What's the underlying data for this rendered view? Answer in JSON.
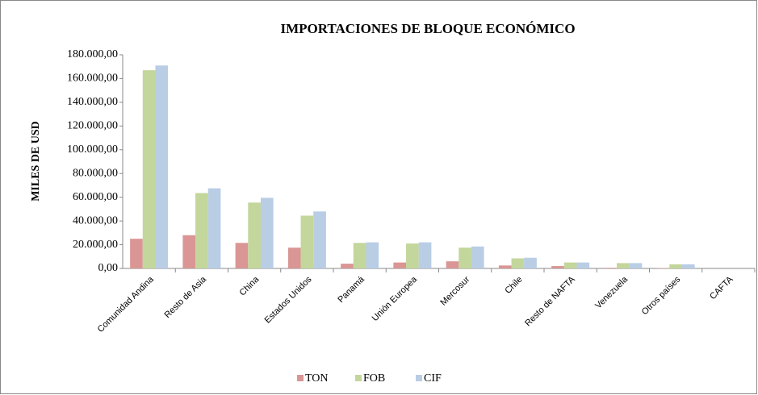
{
  "chart_data": {
    "type": "bar",
    "title": "IMPORTACIONES DE BLOQUE ECONÓMICO",
    "y_label": "MILES DE USD",
    "categories": [
      "Comunidad Andina",
      "Resto de Asia",
      "China",
      "Estados Unidos",
      "Panamá",
      "Unión Europea",
      "Mercosur",
      "Chile",
      "Resto de NAFTA",
      "Venezuela",
      "Otros países",
      "CAFTA"
    ],
    "series": [
      {
        "name": "TON",
        "color": "#d99694",
        "values": [
          25000,
          28000,
          21500,
          17500,
          4000,
          5000,
          6000,
          2500,
          2000,
          500,
          300,
          0
        ]
      },
      {
        "name": "FOB",
        "color": "#c3d69b",
        "values": [
          167000,
          63500,
          55500,
          44500,
          21500,
          21000,
          17500,
          8500,
          5000,
          4500,
          3500,
          0
        ]
      },
      {
        "name": "CIF",
        "color": "#b9cde5",
        "values": [
          171000,
          67500,
          59500,
          48000,
          22000,
          22000,
          18500,
          9000,
          5000,
          4500,
          3500,
          0
        ]
      }
    ],
    "ylim": [
      0,
      180000
    ],
    "yticks": [
      {
        "value": 0,
        "label": "0,00"
      },
      {
        "value": 20000,
        "label": "20.000,00"
      },
      {
        "value": 40000,
        "label": "40.000,00"
      },
      {
        "value": 60000,
        "label": "60.000,00"
      },
      {
        "value": 80000,
        "label": "80.000,00"
      },
      {
        "value": 100000,
        "label": "100.000,00"
      },
      {
        "value": 120000,
        "label": "120.000,00"
      },
      {
        "value": 140000,
        "label": "140.000,00"
      },
      {
        "value": 160000,
        "label": "160.000,00"
      },
      {
        "value": 180000,
        "label": "180.000,00"
      }
    ],
    "legend": "bottom"
  }
}
